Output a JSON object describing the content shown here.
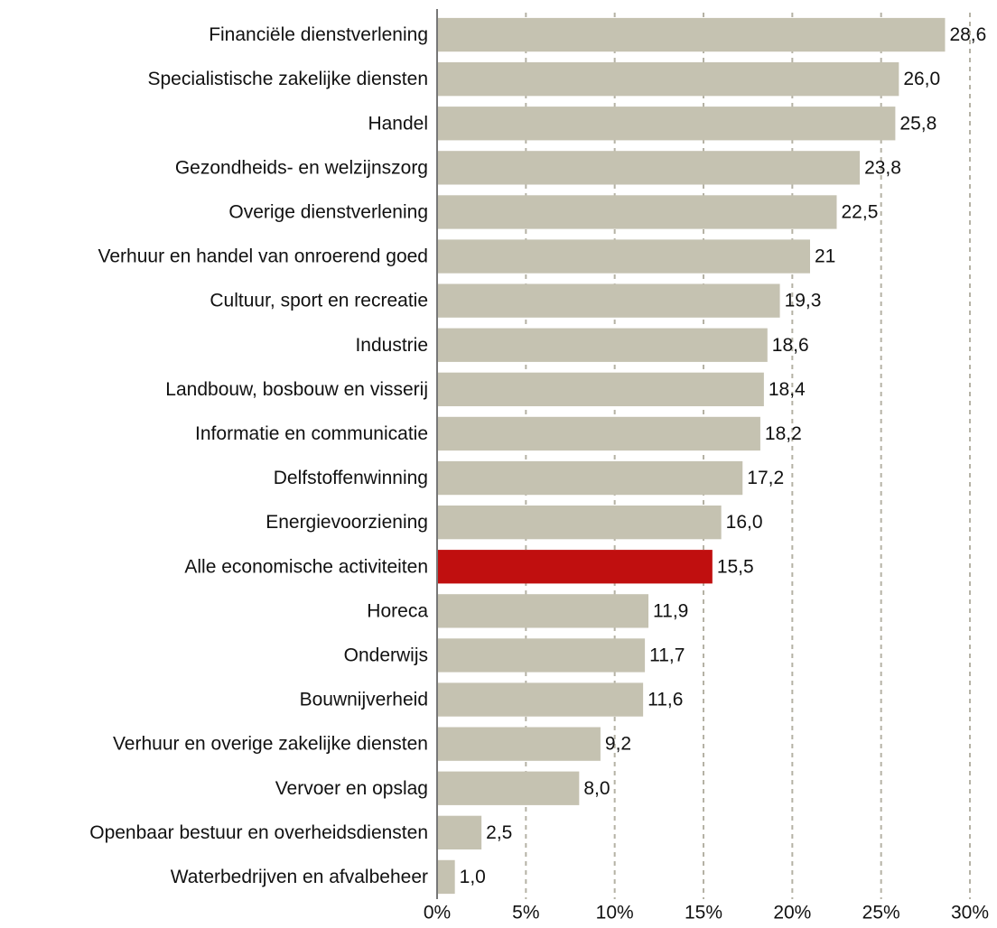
{
  "chart_data": {
    "type": "hbar",
    "categories": [
      "Financiële dienstverlening",
      "Specialistische zakelijke diensten",
      "Handel",
      "Gezondheids- en welzijnszorg",
      "Overige dienstverlening",
      "Verhuur en handel van onroerend goed",
      "Cultuur, sport en recreatie",
      "Industrie",
      "Landbouw, bosbouw en visserij",
      "Informatie en communicatie",
      "Delfstoffenwinning",
      "Energievoorziening",
      "Alle economische activiteiten",
      "Horeca",
      "Onderwijs",
      "Bouwnijverheid",
      "Verhuur en overige zakelijke diensten",
      "Vervoer en opslag",
      "Openbaar bestuur en overheidsdiensten",
      "Waterbedrijven en afvalbeheer"
    ],
    "values": [
      28.6,
      26.0,
      25.8,
      23.8,
      22.5,
      21,
      19.3,
      18.6,
      18.4,
      18.2,
      17.2,
      16.0,
      15.5,
      11.9,
      11.7,
      11.6,
      9.2,
      8.0,
      2.5,
      1.0
    ],
    "value_labels": [
      "28,6",
      "26,0",
      "25,8",
      "23,8",
      "22,5",
      "21",
      "19,3",
      "18,6",
      "18,4",
      "18,2",
      "17,2",
      "16,0",
      "15,5",
      "11,9",
      "11,7",
      "11,6",
      "9,2",
      "8,0",
      "2,5",
      "1,0"
    ],
    "colors": [
      "#c5c2b1",
      "#c5c2b1",
      "#c5c2b1",
      "#c5c2b1",
      "#c5c2b1",
      "#c5c2b1",
      "#c5c2b1",
      "#c5c2b1",
      "#c5c2b1",
      "#c5c2b1",
      "#c5c2b1",
      "#c5c2b1",
      "#c00f0f",
      "#c5c2b1",
      "#c5c2b1",
      "#c5c2b1",
      "#c5c2b1",
      "#c5c2b1",
      "#c5c2b1",
      "#c5c2b1"
    ],
    "xlim": [
      0,
      30
    ],
    "xticks": [
      {
        "value": 0,
        "label": "0%"
      },
      {
        "value": 5,
        "label": "5%"
      },
      {
        "value": 10,
        "label": "10%"
      },
      {
        "value": 15,
        "label": "15%"
      },
      {
        "value": 20,
        "label": "20%"
      },
      {
        "value": 25,
        "label": "25%"
      },
      {
        "value": 30,
        "label": "30%"
      }
    ],
    "grid": true
  }
}
